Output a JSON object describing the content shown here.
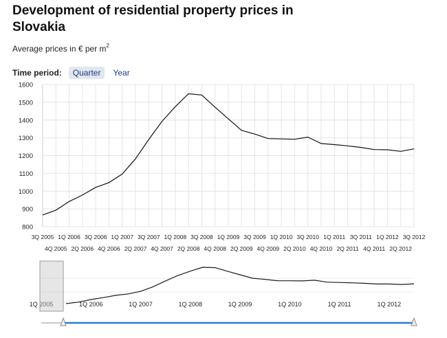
{
  "title": "Development of residential property prices in Slovakia",
  "subtitle": {
    "text": "Average prices in € per m",
    "sup": "2"
  },
  "time_period": {
    "label": "Time period:",
    "options": [
      "Quarter",
      "Year"
    ],
    "selected": "Quarter"
  },
  "colors": {
    "line": "#111111",
    "grid": "#e4e4e4",
    "navigator_line": "#1a1a1a",
    "scrollbar": "#2a7bd1",
    "active_button_bg": "#e2e6ee"
  },
  "chart_data": {
    "type": "line",
    "xlabel": "",
    "ylabel": "",
    "ylim": [
      800,
      1600
    ],
    "y_ticks": [
      800,
      900,
      1000,
      1100,
      1200,
      1300,
      1400,
      1500,
      1600
    ],
    "grid": true,
    "x": [
      "3Q 2005",
      "4Q 2005",
      "1Q 2006",
      "2Q 2006",
      "3Q 2006",
      "4Q 2006",
      "1Q 2007",
      "2Q 2007",
      "3Q 2007",
      "4Q 2007",
      "1Q 2008",
      "2Q 2008",
      "3Q 2008",
      "4Q 2008",
      "1Q 2009",
      "2Q 2009",
      "3Q 2009",
      "4Q 2009",
      "1Q 2010",
      "2Q 2010",
      "3Q 2010",
      "4Q 2010",
      "1Q 2011",
      "2Q 2011",
      "3Q 2011",
      "4Q 2011",
      "1Q 2012",
      "2Q 2012",
      "3Q 2012"
    ],
    "series": [
      {
        "values": [
          866,
          893,
          942,
          978,
          1021,
          1048,
          1096,
          1182,
          1291,
          1393,
          1475,
          1548,
          1541,
          1472,
          1407,
          1342,
          1321,
          1296,
          1294,
          1292,
          1304,
          1268,
          1262,
          1255,
          1246,
          1234,
          1233,
          1224,
          1238
        ]
      }
    ],
    "x_tick_labels_row1": [
      "3Q 2005",
      "1Q 2006",
      "3Q 2006",
      "1Q 2007",
      "3Q 2007",
      "1Q 2008",
      "3Q 2008",
      "1Q 2009",
      "3Q 2009",
      "1Q 2010",
      "3Q 2010",
      "1Q 2011",
      "3Q 2011",
      "1Q 2012",
      "3Q 2012"
    ],
    "x_tick_labels_row2": [
      "4Q 2005",
      "2Q 2006",
      "4Q 2006",
      "2Q 2007",
      "4Q 2007",
      "2Q 2008",
      "4Q 2008",
      "2Q 2009",
      "4Q 2009",
      "2Q 2010",
      "4Q 2010",
      "2Q 2011",
      "4Q 2011",
      "2Q 2012"
    ],
    "navigator_labels": [
      {
        "text": "1Q 2005",
        "quarter_index": -2
      },
      {
        "text": "1Q 2006",
        "quarter_index": 2
      },
      {
        "text": "1Q 2007",
        "quarter_index": 6
      },
      {
        "text": "1Q 2008",
        "quarter_index": 10
      },
      {
        "text": "1Q 2009",
        "quarter_index": 14
      },
      {
        "text": "1Q 2010",
        "quarter_index": 18
      },
      {
        "text": "1Q 2011",
        "quarter_index": 22
      },
      {
        "text": "1Q 2012",
        "quarter_index": 26
      }
    ]
  }
}
